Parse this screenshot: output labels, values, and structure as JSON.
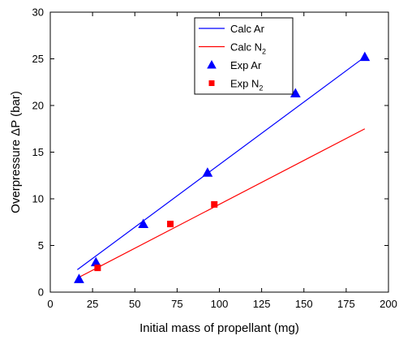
{
  "chart_data": {
    "type": "scatter",
    "xlabel": "Initial mass of propellant (mg)",
    "ylabel": "Overpressure ΔP (bar)",
    "xlim": [
      0,
      200
    ],
    "ylim": [
      0,
      30
    ],
    "xticks": [
      0,
      25,
      50,
      75,
      100,
      125,
      150,
      175,
      200
    ],
    "yticks": [
      0,
      5,
      10,
      15,
      20,
      25,
      30
    ],
    "grid": false,
    "legend_position": "top-center",
    "series": [
      {
        "name": "Calc Ar",
        "name_main": "Calc Ar",
        "name_sub": "",
        "kind": "line",
        "color": "#0000ff",
        "x": [
          16,
          186
        ],
        "y": [
          2.4,
          25.2
        ]
      },
      {
        "name": "Calc N2",
        "name_main": "Calc N",
        "name_sub": "2",
        "kind": "line",
        "color": "#ff0000",
        "x": [
          16,
          186
        ],
        "y": [
          1.5,
          17.5
        ]
      },
      {
        "name": "Exp Ar",
        "name_main": "Exp Ar",
        "name_sub": "",
        "kind": "marker",
        "marker": "triangle",
        "color": "#0000ff",
        "x": [
          17,
          27,
          55,
          93,
          145,
          186
        ],
        "y": [
          1.4,
          3.2,
          7.3,
          12.8,
          21.3,
          25.2
        ]
      },
      {
        "name": "Exp N2",
        "name_main": "Exp N",
        "name_sub": "2",
        "kind": "marker",
        "marker": "square",
        "color": "#ff0000",
        "x": [
          28,
          71,
          97
        ],
        "y": [
          2.6,
          7.3,
          9.4
        ]
      }
    ]
  }
}
